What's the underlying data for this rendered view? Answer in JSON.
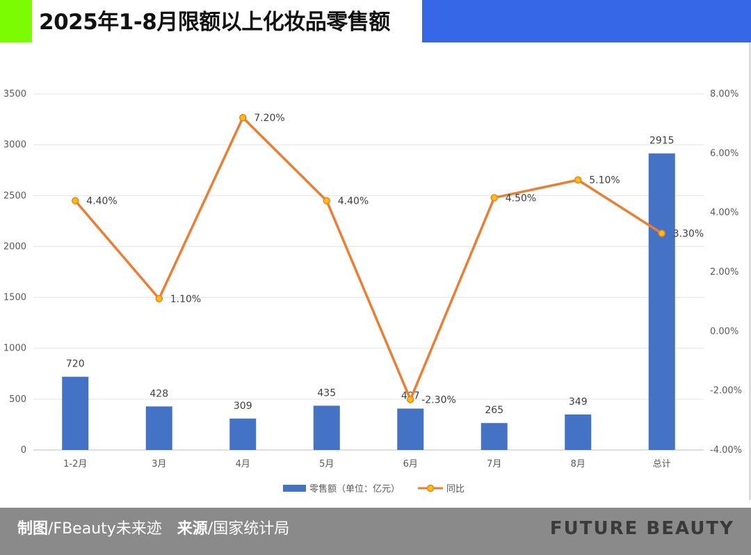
{
  "header": {
    "title": "2025年1-8月限额以上化妆品零售额",
    "accent_color": "#7CFC00",
    "bar_color": "#3667E6"
  },
  "chart_data": {
    "type": "bar+line",
    "categories": [
      "1-2月",
      "3月",
      "4月",
      "5月",
      "6月",
      "7月",
      "8月",
      "总计"
    ],
    "series": [
      {
        "name": "零售额（单位：亿元）",
        "type": "bar",
        "axis": "left",
        "color": "#4472C4",
        "values": [
          720,
          428,
          309,
          435,
          407,
          265,
          349,
          2915
        ],
        "labels": [
          "720",
          "428",
          "309",
          "435",
          "407",
          "265",
          "349",
          "2915"
        ]
      },
      {
        "name": "同比",
        "type": "line",
        "axis": "right",
        "color": "#ED7D31",
        "marker_color": "#FFC000",
        "values": [
          4.4,
          1.1,
          7.2,
          4.4,
          -2.3,
          4.5,
          5.1,
          3.3
        ],
        "labels": [
          "4.40%",
          "1.10%",
          "7.20%",
          "4.40%",
          "-2.30%",
          "4.50%",
          "5.10%",
          "3.30%"
        ]
      }
    ],
    "left_axis": {
      "ylim": [
        0,
        3500
      ],
      "ticks": [
        0,
        500,
        1000,
        1500,
        2000,
        2500,
        3000,
        3500
      ],
      "tick_labels": [
        "0",
        "500",
        "1000",
        "1500",
        "2000",
        "2500",
        "3000",
        "3500"
      ]
    },
    "right_axis": {
      "ylim": [
        -4,
        8
      ],
      "ticks": [
        -4,
        -2,
        0,
        2,
        4,
        6,
        8
      ],
      "tick_labels": [
        "-4.00%",
        "-2.00%",
        "0.00%",
        "2.00%",
        "4.00%",
        "6.00%",
        "8.00%"
      ]
    },
    "grid": true,
    "legend_position": "bottom-center"
  },
  "footer": {
    "maker_label": "制图",
    "maker_value": "/FBeauty未来迹",
    "source_label": "来源",
    "source_value": "/国家统计局",
    "brand": "FUTURE BEAUTY",
    "background": "#8A8A8A"
  }
}
